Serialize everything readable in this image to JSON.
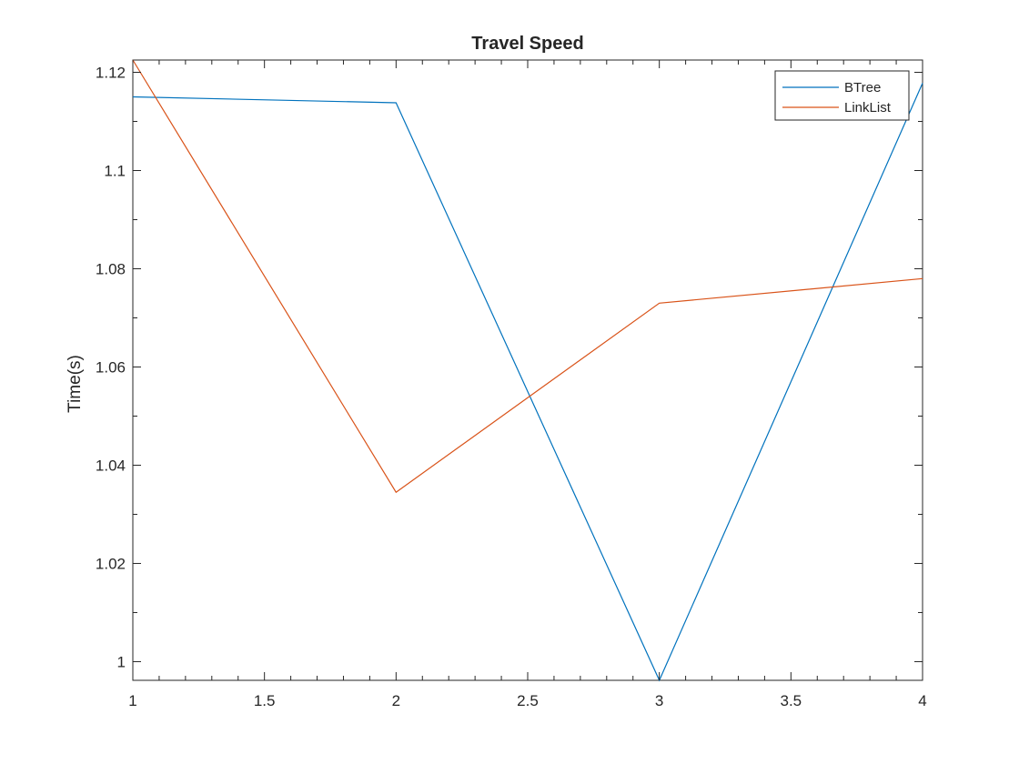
{
  "chart_data": {
    "type": "line",
    "title": "Travel Speed",
    "xlabel": "",
    "ylabel": "Time(s)",
    "xlim": [
      1,
      4
    ],
    "ylim": [
      0.9962,
      1.1225
    ],
    "x_ticks": [
      1,
      1.5,
      2,
      2.5,
      3,
      3.5,
      4
    ],
    "y_ticks": [
      1,
      1.02,
      1.04,
      1.06,
      1.08,
      1.1,
      1.12
    ],
    "x_tick_labels": [
      "1",
      "1.5",
      "2",
      "2.5",
      "3",
      "3.5",
      "4"
    ],
    "y_tick_labels": [
      "1",
      "1.02",
      "1.04",
      "1.06",
      "1.08",
      "1.1",
      "1.12"
    ],
    "grid": false,
    "legend_position": "top-right",
    "x": [
      1,
      2,
      3,
      4
    ],
    "series": [
      {
        "name": "BTree",
        "values": [
          1.115,
          1.1138,
          0.9962,
          1.1178
        ],
        "color": "#0072BD"
      },
      {
        "name": "LinkList",
        "values": [
          1.1225,
          1.0345,
          1.073,
          1.078
        ],
        "color": "#D95319"
      }
    ]
  }
}
